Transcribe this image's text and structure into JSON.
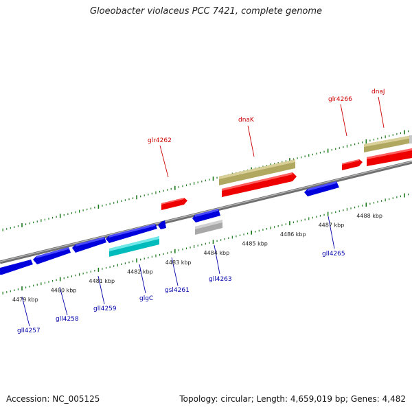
{
  "title": "Gloeobacter violaceus PCC 7421, complete genome",
  "footer": {
    "accession": "Accession: NC_005125",
    "summary": "Topology: circular; Length: 4,659,019 bp; Genes: 4,482"
  },
  "colors": {
    "forward_gene": "#ff0000",
    "reverse_gene": "#0000ee",
    "rna_forward": "#bdb76b",
    "rna_reverse": "#00cccc",
    "pseudo": "#b0b0b0",
    "tick": "#1a7a1a",
    "backbone": "#808080"
  },
  "scale": {
    "unit": "kbp",
    "labels": [
      {
        "kbp": 4479,
        "text": "4479 kbp"
      },
      {
        "kbp": 4480,
        "text": "4480 kbp"
      },
      {
        "kbp": 4481,
        "text": "4481 kbp"
      },
      {
        "kbp": 4482,
        "text": "4482 kbp"
      },
      {
        "kbp": 4483,
        "text": "4483 kbp"
      },
      {
        "kbp": 4484,
        "text": "4484 kbp"
      },
      {
        "kbp": 4485,
        "text": "4485 kbp"
      },
      {
        "kbp": 4486,
        "text": "4486 kbp"
      },
      {
        "kbp": 4487,
        "text": "4487 kbp"
      },
      {
        "kbp": 4488,
        "text": "4488 kbp"
      }
    ]
  },
  "gene_labels": {
    "glr4262": "glr4262",
    "dnaK": "dnaK",
    "glr4266": "glr4266",
    "dnaJ": "dnaJ",
    "gll4257": "gll4257",
    "gll4258": "gll4258",
    "gll4259": "gll4259",
    "glgC": "glgC",
    "gsl4261": "gsl4261",
    "gll4263": "gll4263",
    "gll4265": "gll4265"
  }
}
